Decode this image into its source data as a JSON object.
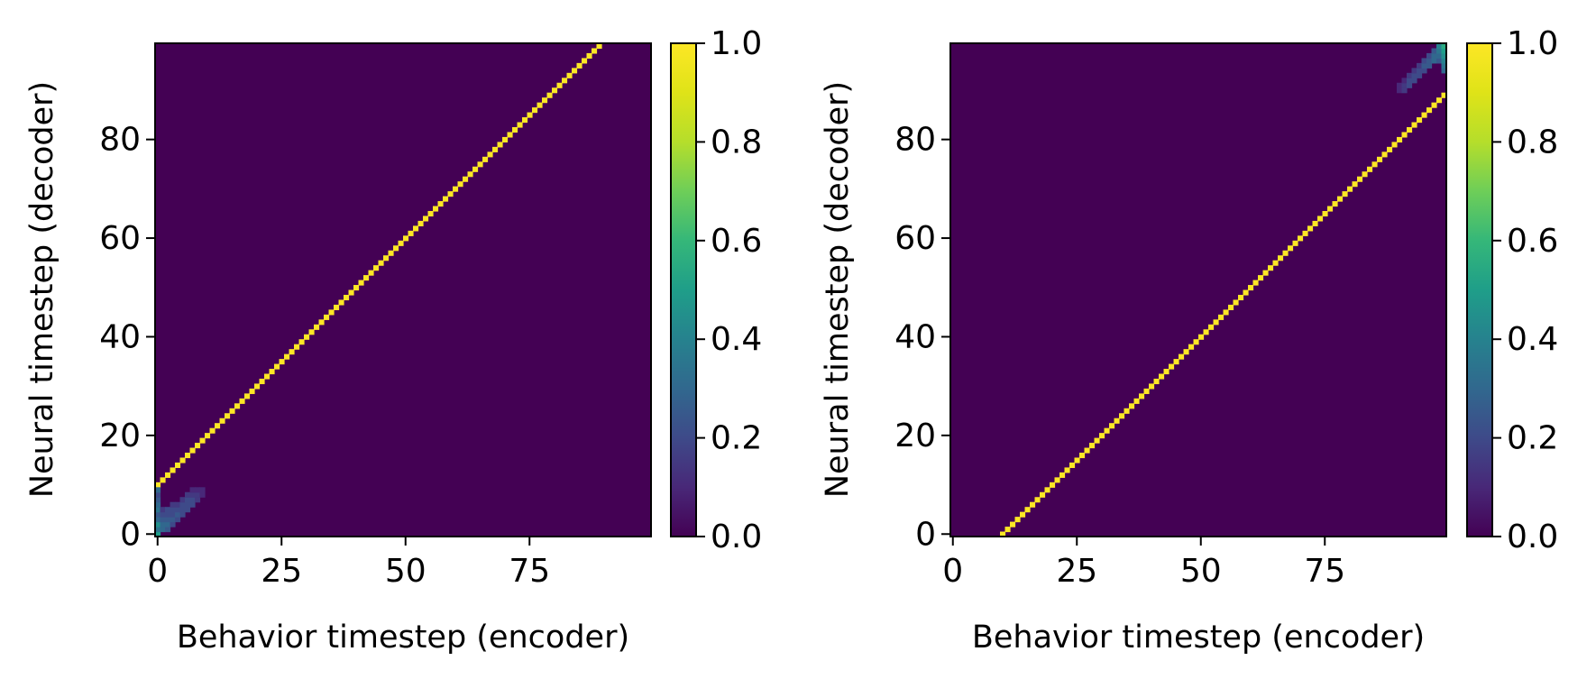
{
  "chart_data": [
    {
      "type": "heatmap",
      "title": "",
      "xlabel": "Behavior timestep (encoder)",
      "ylabel": "Neural timestep (decoder)",
      "grid_size": 100,
      "xlim": [
        0,
        99
      ],
      "ylim": [
        0,
        99
      ],
      "xticks": [
        "0",
        "25",
        "50",
        "75"
      ],
      "xtick_values": [
        0,
        25,
        50,
        75
      ],
      "yticks": [
        "0",
        "20",
        "40",
        "60",
        "80"
      ],
      "ytick_values": [
        0,
        20,
        40,
        60,
        80
      ],
      "colorbar": {
        "min": 0.0,
        "max": 1.0,
        "ticks": [
          "0.0",
          "0.2",
          "0.4",
          "0.6",
          "0.8",
          "1.0"
        ],
        "colormap": "viridis"
      },
      "diagonal": {
        "description": "value 1.0 where neural = behavior + 10",
        "offset": 10,
        "x_range": [
          0,
          89
        ],
        "value": 1.0
      },
      "cluster": {
        "description": "diffuse low-value band near origin",
        "cells": [
          [
            0,
            0,
            0.5
          ],
          [
            0,
            1,
            0.35
          ],
          [
            0,
            2,
            0.45
          ],
          [
            0,
            3,
            0.3
          ],
          [
            0,
            4,
            0.25
          ],
          [
            0,
            5,
            0.35
          ],
          [
            0,
            6,
            0.3
          ],
          [
            0,
            7,
            0.25
          ],
          [
            0,
            8,
            0.2
          ],
          [
            0,
            9,
            0.3
          ],
          [
            1,
            1,
            0.3
          ],
          [
            1,
            2,
            0.3
          ],
          [
            1,
            3,
            0.25
          ],
          [
            1,
            4,
            0.2
          ],
          [
            1,
            5,
            0.15
          ],
          [
            2,
            1,
            0.25
          ],
          [
            2,
            2,
            0.3
          ],
          [
            2,
            3,
            0.25
          ],
          [
            2,
            4,
            0.2
          ],
          [
            2,
            5,
            0.2
          ],
          [
            3,
            2,
            0.2
          ],
          [
            3,
            3,
            0.25
          ],
          [
            3,
            4,
            0.2
          ],
          [
            3,
            5,
            0.2
          ],
          [
            3,
            6,
            0.15
          ],
          [
            4,
            3,
            0.2
          ],
          [
            4,
            4,
            0.25
          ],
          [
            4,
            5,
            0.2
          ],
          [
            4,
            6,
            0.15
          ],
          [
            5,
            4,
            0.2
          ],
          [
            5,
            5,
            0.2
          ],
          [
            5,
            6,
            0.2
          ],
          [
            5,
            7,
            0.15
          ],
          [
            6,
            5,
            0.2
          ],
          [
            6,
            6,
            0.2
          ],
          [
            6,
            7,
            0.2
          ],
          [
            6,
            8,
            0.15
          ],
          [
            7,
            6,
            0.2
          ],
          [
            7,
            7,
            0.2
          ],
          [
            7,
            8,
            0.15
          ],
          [
            7,
            9,
            0.1
          ],
          [
            8,
            7,
            0.15
          ],
          [
            8,
            8,
            0.15
          ],
          [
            8,
            9,
            0.1
          ],
          [
            9,
            8,
            0.1
          ],
          [
            9,
            9,
            0.1
          ]
        ]
      }
    },
    {
      "type": "heatmap",
      "title": "",
      "xlabel": "Behavior timestep (encoder)",
      "ylabel": "Neural timestep (decoder)",
      "grid_size": 100,
      "xlim": [
        0,
        99
      ],
      "ylim": [
        0,
        99
      ],
      "xticks": [
        "0",
        "25",
        "50",
        "75"
      ],
      "xtick_values": [
        0,
        25,
        50,
        75
      ],
      "yticks": [
        "0",
        "20",
        "40",
        "60",
        "80"
      ],
      "ytick_values": [
        0,
        20,
        40,
        60,
        80
      ],
      "colorbar": {
        "min": 0.0,
        "max": 1.0,
        "ticks": [
          "0.0",
          "0.2",
          "0.4",
          "0.6",
          "0.8",
          "1.0"
        ],
        "colormap": "viridis"
      },
      "diagonal": {
        "description": "value 1.0 where neural = behavior - 10",
        "offset": -10,
        "x_range": [
          10,
          99
        ],
        "value": 1.0
      },
      "cluster": {
        "description": "diffuse low-value band near top-right corner",
        "cells": [
          [
            90,
            90,
            0.1
          ],
          [
            90,
            91,
            0.1
          ],
          [
            91,
            90,
            0.15
          ],
          [
            91,
            91,
            0.15
          ],
          [
            91,
            92,
            0.1
          ],
          [
            92,
            91,
            0.2
          ],
          [
            92,
            92,
            0.2
          ],
          [
            92,
            93,
            0.15
          ],
          [
            93,
            92,
            0.2
          ],
          [
            93,
            93,
            0.2
          ],
          [
            93,
            94,
            0.15
          ],
          [
            94,
            93,
            0.2
          ],
          [
            94,
            94,
            0.2
          ],
          [
            94,
            95,
            0.15
          ],
          [
            95,
            94,
            0.2
          ],
          [
            95,
            95,
            0.25
          ],
          [
            95,
            96,
            0.2
          ],
          [
            96,
            95,
            0.25
          ],
          [
            96,
            96,
            0.25
          ],
          [
            96,
            97,
            0.2
          ],
          [
            97,
            96,
            0.3
          ],
          [
            97,
            97,
            0.3
          ],
          [
            97,
            98,
            0.25
          ],
          [
            98,
            96,
            0.25
          ],
          [
            98,
            97,
            0.3
          ],
          [
            98,
            98,
            0.35
          ],
          [
            98,
            99,
            0.4
          ],
          [
            99,
            94,
            0.3
          ],
          [
            99,
            95,
            0.35
          ],
          [
            99,
            96,
            0.4
          ],
          [
            99,
            97,
            0.45
          ],
          [
            99,
            98,
            0.5
          ],
          [
            99,
            99,
            0.55
          ]
        ]
      }
    }
  ]
}
